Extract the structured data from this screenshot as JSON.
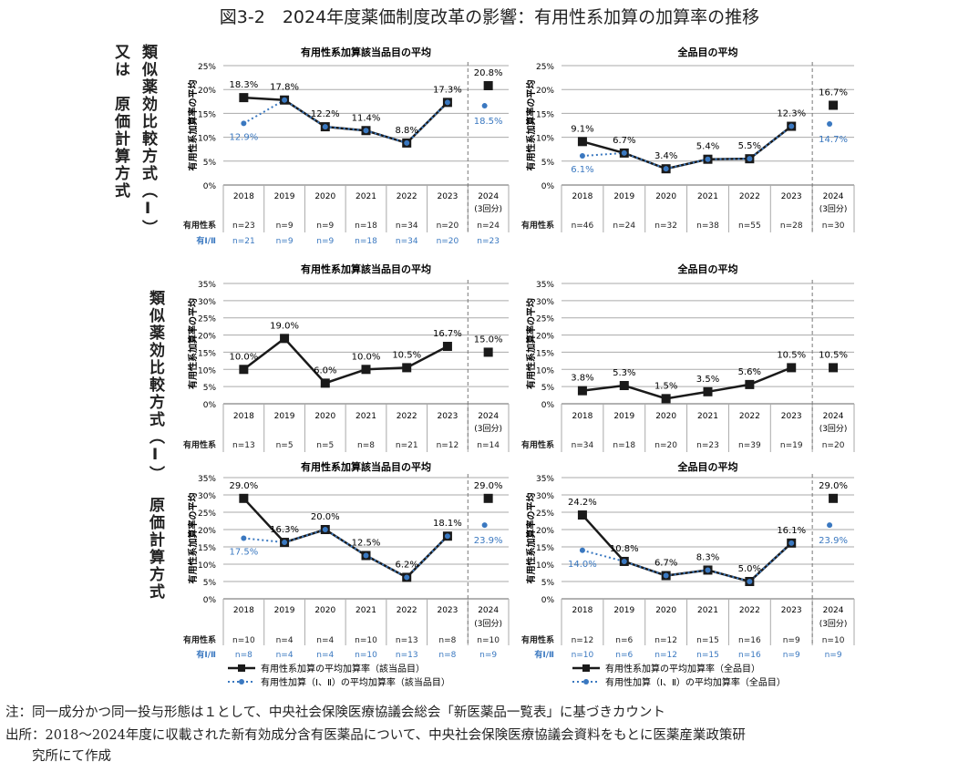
{
  "title": "図3-2　2024年度薬価制度改革の影響：有用性系加算の加算率の推移",
  "row_labels": {
    "row1_a": "類似薬効比較方式（Ⅰ）",
    "row1_b": "又は　原価計算方式",
    "row2": "類似薬効比較方式（Ⅰ）",
    "row3": "原価計算方式"
  },
  "table_labels": {
    "main": "有用性系",
    "sec": "有Ⅰ/Ⅱ"
  },
  "colors": {
    "main": "#1a1a1a",
    "sec": "#3a78c0",
    "grid": "#999999"
  },
  "legend": {
    "left": [
      "有用性系加算の平均加算率（該当品目）",
      "有用性加算（Ⅰ、Ⅱ）の平均加算率（該当品目）"
    ],
    "right": [
      "有用性系加算の平均加算率（全品目）",
      "有用性加算（Ⅰ、Ⅱ）の平均加算率（全品目）"
    ]
  },
  "notes": [
    "注：同一成分かつ同一投与形態は１として、中央社会保険医療協議会総会「新医薬品一覧表」に基づきカウント",
    "出所：2018〜2024年度に収載された新有効成分含有医薬品について、中央社会保険医療協議会資料をもとに医薬産業政策研",
    "　　究所にて作成"
  ],
  "chart_data": [
    {
      "type": "line",
      "title": "有用性系加算該当品目の平均",
      "ylabel": "有用性系加算率の平均",
      "ylim": [
        0,
        25
      ],
      "yticks": [
        0,
        5,
        10,
        15,
        20,
        25
      ],
      "categories": [
        "2018",
        "2019",
        "2020",
        "2021",
        "2022",
        "2023",
        "2024"
      ],
      "sub_2024": "(3回分)",
      "series": [
        {
          "values": [
            18.3,
            17.8,
            12.2,
            11.4,
            8.8,
            17.3,
            20.8
          ],
          "labels": [
            "18.3%",
            "17.8%",
            "12.2%",
            "11.4%",
            "8.8%",
            "17.3%",
            "20.8%"
          ],
          "n": [
            "n=23",
            "n=9",
            "n=9",
            "n=18",
            "n=34",
            "n=20",
            "n=24"
          ]
        },
        {
          "values": [
            12.9,
            17.8,
            12.2,
            11.4,
            8.8,
            17.3,
            18.5
          ],
          "labels": [
            "12.9%",
            "",
            "",
            "",
            "",
            "",
            "18.5%"
          ],
          "n": [
            "n=21",
            "n=9",
            "n=9",
            "n=18",
            "n=34",
            "n=20",
            "n=23"
          ]
        }
      ]
    },
    {
      "type": "line",
      "title": "全品目の平均",
      "ylabel": "有用性系加算率の平均",
      "ylim": [
        0,
        25
      ],
      "yticks": [
        0,
        5,
        10,
        15,
        20,
        25
      ],
      "categories": [
        "2018",
        "2019",
        "2020",
        "2021",
        "2022",
        "2023",
        "2024"
      ],
      "sub_2024": "(3回分)",
      "series": [
        {
          "values": [
            9.1,
            6.7,
            3.4,
            5.4,
            5.5,
            12.3,
            16.7
          ],
          "labels": [
            "9.1%",
            "6.7%",
            "3.4%",
            "5.4%",
            "5.5%",
            "12.3%",
            "16.7%"
          ],
          "n": [
            "n=46",
            "n=24",
            "n=32",
            "n=38",
            "n=55",
            "n=28",
            "n=30"
          ]
        },
        {
          "values": [
            6.1,
            6.7,
            3.4,
            5.4,
            5.5,
            12.3,
            14.7
          ],
          "labels": [
            "6.1%",
            "",
            "",
            "",
            "",
            "",
            "14.7%"
          ],
          "n": []
        }
      ]
    },
    {
      "type": "line",
      "title": "有用性系加算該当品目の平均",
      "ylabel": "有用性系加算率の平均",
      "ylim": [
        0,
        35
      ],
      "yticks": [
        0,
        5,
        10,
        15,
        20,
        25,
        30,
        35
      ],
      "categories": [
        "2018",
        "2019",
        "2020",
        "2021",
        "2022",
        "2023",
        "2024"
      ],
      "sub_2024": "(3回分)",
      "series": [
        {
          "values": [
            10.0,
            19.0,
            6.0,
            10.0,
            10.5,
            16.7,
            15.0
          ],
          "labels": [
            "10.0%",
            "19.0%",
            "6.0%",
            "10.0%",
            "10.5%",
            "16.7%",
            "15.0%"
          ],
          "n": [
            "n=13",
            "n=5",
            "n=5",
            "n=8",
            "n=21",
            "n=12",
            "n=14"
          ]
        }
      ]
    },
    {
      "type": "line",
      "title": "全品目の平均",
      "ylabel": "有用性系加算率の平均",
      "ylim": [
        0,
        35
      ],
      "yticks": [
        0,
        5,
        10,
        15,
        20,
        25,
        30,
        35
      ],
      "categories": [
        "2018",
        "2019",
        "2020",
        "2021",
        "2022",
        "2023",
        "2024"
      ],
      "sub_2024": "(3回分)",
      "series": [
        {
          "values": [
            3.8,
            5.3,
            1.5,
            3.5,
            5.6,
            10.5,
            10.5
          ],
          "labels": [
            "3.8%",
            "5.3%",
            "1.5%",
            "3.5%",
            "5.6%",
            "10.5%",
            "10.5%"
          ],
          "n": [
            "n=34",
            "n=18",
            "n=20",
            "n=23",
            "n=39",
            "n=19",
            "n=20"
          ]
        }
      ]
    },
    {
      "type": "line",
      "title": "有用性系加算該当品目の平均",
      "ylabel": "有用性系加算率の平均",
      "ylim": [
        0,
        35
      ],
      "yticks": [
        0,
        5,
        10,
        15,
        20,
        25,
        30,
        35
      ],
      "categories": [
        "2018",
        "2019",
        "2020",
        "2021",
        "2022",
        "2023",
        "2024"
      ],
      "sub_2024": "(3回分)",
      "series": [
        {
          "values": [
            29.0,
            16.3,
            20.0,
            12.5,
            6.2,
            18.1,
            29.0
          ],
          "labels": [
            "29.0%",
            "16.3%",
            "20.0%",
            "12.5%",
            "6.2%",
            "18.1%",
            "29.0%"
          ],
          "n": [
            "n=10",
            "n=4",
            "n=4",
            "n=10",
            "n=13",
            "n=8",
            "n=10"
          ]
        },
        {
          "values": [
            17.5,
            16.3,
            20.0,
            12.5,
            6.2,
            18.1,
            23.9
          ],
          "labels": [
            "17.5%",
            "",
            "",
            "",
            "",
            "",
            "23.9%"
          ],
          "n": [
            "n=8",
            "n=4",
            "n=4",
            "n=10",
            "n=13",
            "n=8",
            "n=9"
          ]
        }
      ]
    },
    {
      "type": "line",
      "title": "全品目の平均",
      "ylabel": "有用性系加算率の平均",
      "ylim": [
        0,
        35
      ],
      "yticks": [
        0,
        5,
        10,
        15,
        20,
        25,
        30,
        35
      ],
      "categories": [
        "2018",
        "2019",
        "2020",
        "2021",
        "2022",
        "2023",
        "2024"
      ],
      "sub_2024": "(3回分)",
      "series": [
        {
          "values": [
            24.2,
            10.8,
            6.7,
            8.3,
            5.0,
            16.1,
            29.0
          ],
          "labels": [
            "24.2%",
            "10.8%",
            "6.7%",
            "8.3%",
            "5.0%",
            "16.1%",
            "29.0%"
          ],
          "n": [
            "n=12",
            "n=6",
            "n=12",
            "n=15",
            "n=16",
            "n=9",
            "n=10"
          ]
        },
        {
          "values": [
            14.0,
            10.8,
            6.7,
            8.3,
            5.0,
            16.1,
            23.9
          ],
          "labels": [
            "14.0%",
            "",
            "",
            "",
            "",
            "",
            "23.9%"
          ],
          "n": [
            "n=10",
            "n=6",
            "n=12",
            "n=15",
            "n=16",
            "n=9",
            "n=9"
          ]
        }
      ]
    }
  ]
}
